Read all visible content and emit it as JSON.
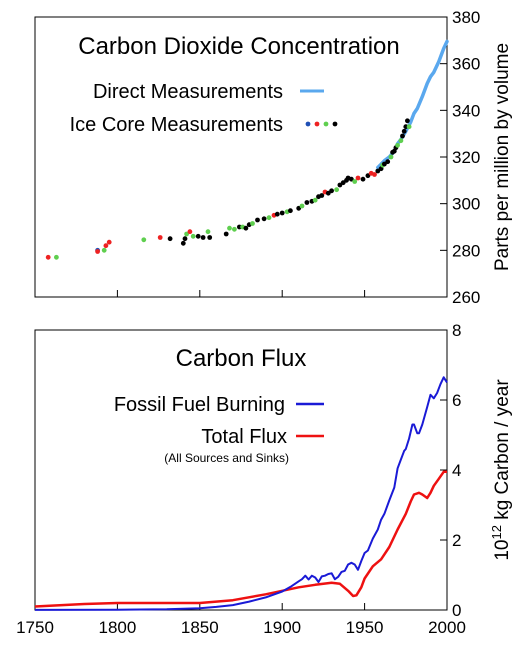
{
  "x_tick_labels": [
    "1750",
    "1800",
    "1850",
    "1900",
    "1950",
    "2000"
  ],
  "chart_data": [
    {
      "type": "scatter",
      "title": "Carbon Dioxide Concentration",
      "ylabel": "Parts per million by volume",
      "xlim": [
        1750,
        2000
      ],
      "ylim": [
        260,
        380
      ],
      "y_ticks": [
        260,
        280,
        300,
        320,
        340,
        360,
        380
      ],
      "grid": false,
      "legend_position": "top-left",
      "legend": [
        {
          "label": "Direct Measurements",
          "color": "#5aa8ee",
          "marker": "line"
        },
        {
          "label": "Ice Core Measurements",
          "colors": [
            "#1f4fb5",
            "#ee2222",
            "#5fcf4f",
            "#000000"
          ],
          "marker": "dots"
        }
      ],
      "series": [
        {
          "name": "Direct Measurements",
          "kind": "line",
          "color": "#5aa8ee",
          "x": [
            1958,
            1960,
            1962,
            1965,
            1968,
            1970,
            1972,
            1975,
            1978,
            1980,
            1982,
            1985,
            1988,
            1990,
            1992,
            1995,
            1998,
            2000
          ],
          "y": [
            315.5,
            316.9,
            318.4,
            320.0,
            322.5,
            325.7,
            327.5,
            331.0,
            335.0,
            338.7,
            340.8,
            345.9,
            351.5,
            354.4,
            356.3,
            360.9,
            366.5,
            369.5
          ]
        },
        {
          "name": "Ice Core Measurements",
          "kind": "points",
          "points": [
            {
              "x": 1758,
              "y": 277,
              "c": "#ee2222"
            },
            {
              "x": 1763,
              "y": 277,
              "c": "#5fcf4f"
            },
            {
              "x": 1788,
              "y": 280,
              "c": "#1f4fb5"
            },
            {
              "x": 1788,
              "y": 279.5,
              "c": "#ee2222"
            },
            {
              "x": 1792,
              "y": 280,
              "c": "#5fcf4f"
            },
            {
              "x": 1793,
              "y": 282,
              "c": "#ee2222"
            },
            {
              "x": 1795,
              "y": 283.5,
              "c": "#ee2222"
            },
            {
              "x": 1816,
              "y": 284.5,
              "c": "#5fcf4f"
            },
            {
              "x": 1826,
              "y": 285.5,
              "c": "#ee2222"
            },
            {
              "x": 1832,
              "y": 285,
              "c": "#000000"
            },
            {
              "x": 1840,
              "y": 283,
              "c": "#000000"
            },
            {
              "x": 1841,
              "y": 285,
              "c": "#000000"
            },
            {
              "x": 1842,
              "y": 287,
              "c": "#5fcf4f"
            },
            {
              "x": 1844,
              "y": 288,
              "c": "#ee2222"
            },
            {
              "x": 1846,
              "y": 286,
              "c": "#5fcf4f"
            },
            {
              "x": 1849,
              "y": 286,
              "c": "#000000"
            },
            {
              "x": 1852,
              "y": 285.5,
              "c": "#000000"
            },
            {
              "x": 1855,
              "y": 288,
              "c": "#5fcf4f"
            },
            {
              "x": 1856,
              "y": 285.5,
              "c": "#000000"
            },
            {
              "x": 1866,
              "y": 287,
              "c": "#000000"
            },
            {
              "x": 1868,
              "y": 289.5,
              "c": "#5fcf4f"
            },
            {
              "x": 1871,
              "y": 289,
              "c": "#5fcf4f"
            },
            {
              "x": 1874,
              "y": 290,
              "c": "#000000"
            },
            {
              "x": 1876,
              "y": 290,
              "c": "#5fcf4f"
            },
            {
              "x": 1878,
              "y": 289.5,
              "c": "#000000"
            },
            {
              "x": 1880,
              "y": 291,
              "c": "#000000"
            },
            {
              "x": 1882,
              "y": 291.5,
              "c": "#5fcf4f"
            },
            {
              "x": 1885,
              "y": 293,
              "c": "#000000"
            },
            {
              "x": 1889,
              "y": 293.5,
              "c": "#000000"
            },
            {
              "x": 1892,
              "y": 294,
              "c": "#5fcf4f"
            },
            {
              "x": 1895,
              "y": 295,
              "c": "#ee2222"
            },
            {
              "x": 1897,
              "y": 295.5,
              "c": "#000000"
            },
            {
              "x": 1900,
              "y": 296,
              "c": "#000000"
            },
            {
              "x": 1903,
              "y": 296.5,
              "c": "#5fcf4f"
            },
            {
              "x": 1905,
              "y": 297,
              "c": "#000000"
            },
            {
              "x": 1910,
              "y": 298,
              "c": "#000000"
            },
            {
              "x": 1912,
              "y": 299,
              "c": "#5fcf4f"
            },
            {
              "x": 1915,
              "y": 300.5,
              "c": "#000000"
            },
            {
              "x": 1918,
              "y": 301,
              "c": "#000000"
            },
            {
              "x": 1920,
              "y": 301.5,
              "c": "#5fcf4f"
            },
            {
              "x": 1922,
              "y": 303,
              "c": "#000000"
            },
            {
              "x": 1924,
              "y": 303.5,
              "c": "#000000"
            },
            {
              "x": 1926,
              "y": 305,
              "c": "#ee2222"
            },
            {
              "x": 1928,
              "y": 304.5,
              "c": "#000000"
            },
            {
              "x": 1930,
              "y": 305.5,
              "c": "#000000"
            },
            {
              "x": 1933,
              "y": 306,
              "c": "#5fcf4f"
            },
            {
              "x": 1935,
              "y": 308,
              "c": "#000000"
            },
            {
              "x": 1937,
              "y": 309,
              "c": "#000000"
            },
            {
              "x": 1939,
              "y": 310,
              "c": "#000000"
            },
            {
              "x": 1940,
              "y": 311,
              "c": "#000000"
            },
            {
              "x": 1942,
              "y": 310.5,
              "c": "#000000"
            },
            {
              "x": 1944,
              "y": 309.5,
              "c": "#5fcf4f"
            },
            {
              "x": 1946,
              "y": 311,
              "c": "#ee2222"
            },
            {
              "x": 1949,
              "y": 310.5,
              "c": "#000000"
            },
            {
              "x": 1952,
              "y": 312,
              "c": "#000000"
            },
            {
              "x": 1954,
              "y": 313,
              "c": "#ee2222"
            },
            {
              "x": 1956,
              "y": 312.5,
              "c": "#ee2222"
            },
            {
              "x": 1958,
              "y": 314,
              "c": "#000000"
            },
            {
              "x": 1960,
              "y": 315,
              "c": "#000000"
            },
            {
              "x": 1961,
              "y": 316.5,
              "c": "#5fcf4f"
            },
            {
              "x": 1962,
              "y": 317,
              "c": "#000000"
            },
            {
              "x": 1964,
              "y": 318,
              "c": "#000000"
            },
            {
              "x": 1966,
              "y": 320,
              "c": "#5fcf4f"
            },
            {
              "x": 1967,
              "y": 322,
              "c": "#000000"
            },
            {
              "x": 1968,
              "y": 322.5,
              "c": "#000000"
            },
            {
              "x": 1969,
              "y": 324,
              "c": "#000000"
            },
            {
              "x": 1970,
              "y": 325,
              "c": "#5fcf4f"
            },
            {
              "x": 1972,
              "y": 327,
              "c": "#5fcf4f"
            },
            {
              "x": 1973,
              "y": 329,
              "c": "#000000"
            },
            {
              "x": 1974,
              "y": 331,
              "c": "#000000"
            },
            {
              "x": 1975,
              "y": 333,
              "c": "#000000"
            },
            {
              "x": 1976,
              "y": 335.5,
              "c": "#000000"
            },
            {
              "x": 1977,
              "y": 333,
              "c": "#5fcf4f"
            }
          ]
        }
      ]
    },
    {
      "type": "line",
      "title": "Carbon Flux",
      "ylabel": "10^12 kg Carbon / year",
      "ylabel_parts": {
        "base": "10",
        "exponent": "12",
        "rest": " kg Carbon / year"
      },
      "xlim": [
        1750,
        2000
      ],
      "ylim": [
        0,
        8
      ],
      "y_ticks": [
        0,
        2,
        4,
        6,
        8
      ],
      "grid": false,
      "legend_position": "top-left",
      "legend": [
        {
          "label": "Fossil Fuel Burning",
          "color": "#1a1ad6"
        },
        {
          "label": "Total Flux",
          "sublabel": "(All Sources and Sinks)",
          "color": "#ee1111"
        }
      ],
      "series": [
        {
          "name": "Fossil Fuel Burning",
          "color": "#1a1ad6",
          "x": [
            1750,
            1800,
            1830,
            1850,
            1860,
            1870,
            1880,
            1890,
            1900,
            1905,
            1910,
            1912,
            1914,
            1916,
            1918,
            1920,
            1922,
            1924,
            1926,
            1928,
            1930,
            1932,
            1934,
            1936,
            1938,
            1940,
            1942,
            1944,
            1946,
            1948,
            1950,
            1952,
            1955,
            1958,
            1960,
            1962,
            1965,
            1968,
            1970,
            1972,
            1974,
            1975,
            1977,
            1979,
            1980,
            1982,
            1983,
            1985,
            1988,
            1990,
            1992,
            1994,
            1996,
            1998,
            2000
          ],
          "y": [
            0.003,
            0.008,
            0.02,
            0.05,
            0.09,
            0.14,
            0.24,
            0.36,
            0.53,
            0.66,
            0.82,
            0.88,
            0.98,
            0.87,
            0.98,
            0.93,
            0.8,
            0.96,
            0.98,
            1.03,
            1.05,
            0.88,
            0.95,
            1.09,
            1.12,
            1.3,
            1.35,
            1.3,
            1.15,
            1.4,
            1.63,
            1.7,
            2.04,
            2.3,
            2.58,
            2.75,
            3.13,
            3.5,
            4.05,
            4.3,
            4.55,
            4.6,
            4.9,
            5.3,
            5.3,
            5.05,
            5.05,
            5.3,
            5.8,
            6.15,
            6.05,
            6.2,
            6.45,
            6.65,
            6.5
          ]
        },
        {
          "name": "Total Flux",
          "color": "#ee1111",
          "x": [
            1750,
            1780,
            1800,
            1820,
            1850,
            1870,
            1890,
            1900,
            1910,
            1920,
            1930,
            1935,
            1940,
            1943,
            1945,
            1948,
            1950,
            1955,
            1960,
            1965,
            1970,
            1975,
            1978,
            1980,
            1983,
            1985,
            1988,
            1990,
            1992,
            1995,
            1998,
            2000
          ],
          "y": [
            0.1,
            0.17,
            0.2,
            0.2,
            0.2,
            0.28,
            0.45,
            0.55,
            0.65,
            0.72,
            0.78,
            0.75,
            0.55,
            0.4,
            0.42,
            0.65,
            0.9,
            1.25,
            1.45,
            1.8,
            2.3,
            2.75,
            3.1,
            3.3,
            3.35,
            3.3,
            3.2,
            3.35,
            3.55,
            3.75,
            3.95,
            3.95
          ]
        }
      ]
    }
  ]
}
